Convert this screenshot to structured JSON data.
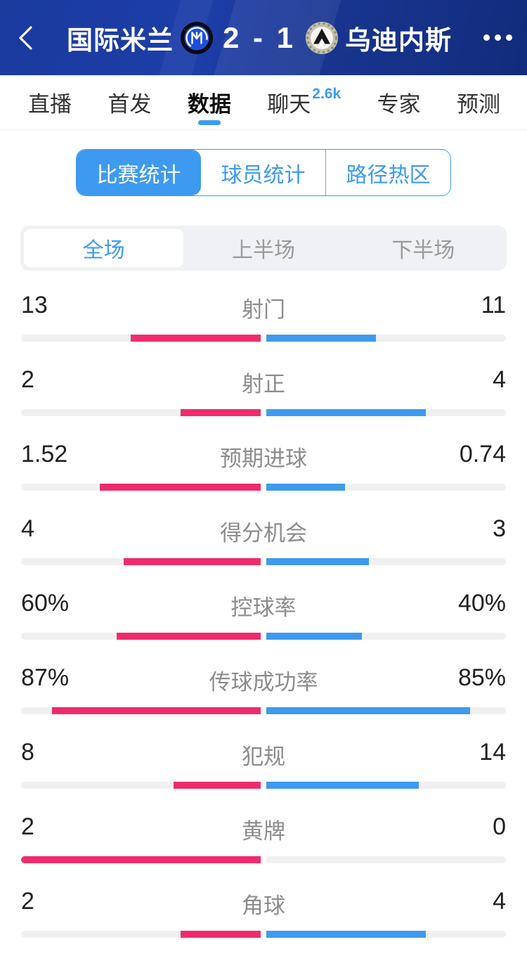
{
  "header": {
    "home_team": "国际米兰",
    "away_team": "乌迪内斯",
    "score": "2 - 1"
  },
  "nav_tabs": [
    {
      "label": "直播"
    },
    {
      "label": "首发"
    },
    {
      "label": "数据"
    },
    {
      "label": "聊天",
      "badge": "2.6k"
    },
    {
      "label": "专家"
    },
    {
      "label": "预测"
    }
  ],
  "stat_type_tabs": [
    {
      "label": "比赛统计"
    },
    {
      "label": "球员统计"
    },
    {
      "label": "路径热区"
    }
  ],
  "period_tabs": [
    {
      "label": "全场"
    },
    {
      "label": "上半场"
    },
    {
      "label": "下半场"
    }
  ],
  "colors": {
    "home": "#ef2b6c",
    "away": "#3d9af0",
    "accent": "#3d9af0",
    "header_bg": "#1a3a9e"
  },
  "stats": [
    {
      "label": "射门",
      "home": "13",
      "away": "11",
      "home_pct": 54.2,
      "away_pct": 45.8
    },
    {
      "label": "射正",
      "home": "2",
      "away": "4",
      "home_pct": 33.3,
      "away_pct": 66.7
    },
    {
      "label": "预期进球",
      "home": "1.52",
      "away": "0.74",
      "home_pct": 67.3,
      "away_pct": 32.7
    },
    {
      "label": "得分机会",
      "home": "4",
      "away": "3",
      "home_pct": 57.1,
      "away_pct": 42.9
    },
    {
      "label": "控球率",
      "home": "60%",
      "away": "40%",
      "home_pct": 60,
      "away_pct": 40
    },
    {
      "label": "传球成功率",
      "home": "87%",
      "away": "85%",
      "home_pct": 87,
      "away_pct": 85
    },
    {
      "label": "犯规",
      "home": "8",
      "away": "14",
      "home_pct": 36.4,
      "away_pct": 63.6
    },
    {
      "label": "黄牌",
      "home": "2",
      "away": "0",
      "home_pct": 100,
      "away_pct": 0
    },
    {
      "label": "角球",
      "home": "2",
      "away": "4",
      "home_pct": 33.3,
      "away_pct": 66.7
    }
  ]
}
